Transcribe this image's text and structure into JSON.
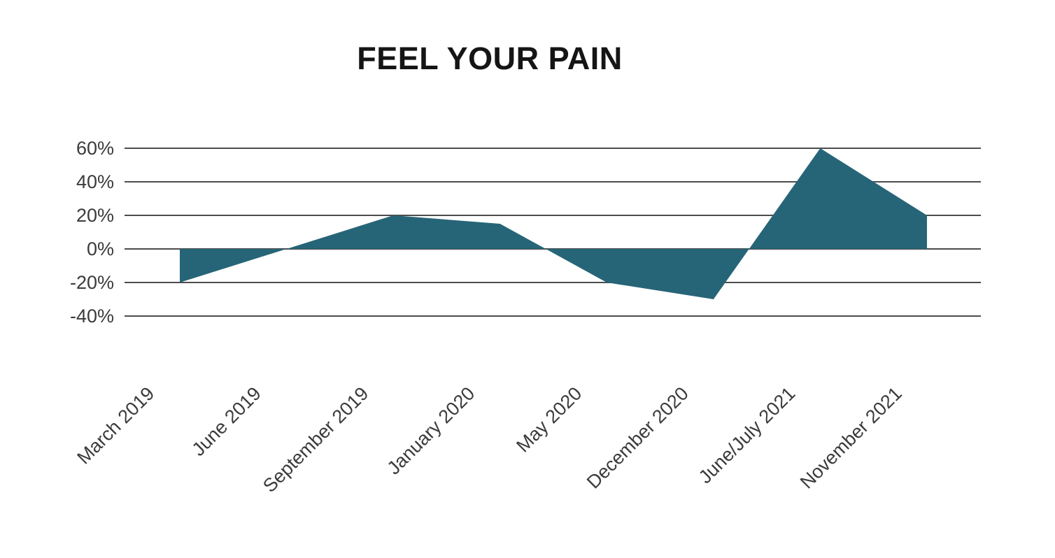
{
  "chart_data": {
    "type": "area",
    "title": "FEEL YOUR PAIN",
    "categories": [
      "March 2019",
      "June 2019",
      "September 2019",
      "January 2020",
      "May 2020",
      "December 2020",
      "June/July 2021",
      "November 2021"
    ],
    "values": [
      -20,
      0,
      20,
      15,
      -20,
      -30,
      60,
      20
    ],
    "unit": "%",
    "xlabel": "",
    "ylabel": "",
    "ylim": [
      -40,
      60
    ],
    "yticks": [
      60,
      40,
      20,
      0,
      -20,
      -40
    ],
    "ytick_labels": [
      "60%",
      "40%",
      "20%",
      "0%",
      "-20%",
      "-40%"
    ],
    "grid": true,
    "legend": false,
    "baseline": 0,
    "area_color": "#266577",
    "gridline_color": "#4c4c4c",
    "label_color": "#3b3b3b",
    "title_color": "#151515",
    "background_color": "#ffffff"
  }
}
